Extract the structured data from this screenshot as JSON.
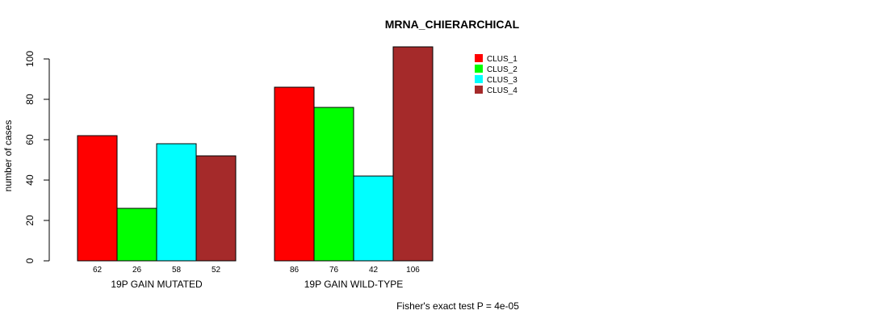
{
  "chart_data": {
    "type": "bar",
    "title": "MRNA_CHIERARCHICAL",
    "xlabel": "",
    "ylabel": "number of cases",
    "ylim": [
      0,
      105
    ],
    "yticks": [
      0,
      20,
      40,
      60,
      80,
      100
    ],
    "groups": [
      "19P GAIN MUTATED",
      "19P GAIN WILD-TYPE"
    ],
    "series": [
      {
        "name": "CLUS_1",
        "color": "#ff0000",
        "values": [
          62,
          86
        ]
      },
      {
        "name": "CLUS_2",
        "color": "#00ff00",
        "values": [
          26,
          76
        ]
      },
      {
        "name": "CLUS_3",
        "color": "#00ffff",
        "values": [
          58,
          42
        ]
      },
      {
        "name": "CLUS_4",
        "color": "#a52a2a",
        "values": [
          52,
          106
        ]
      }
    ],
    "footnote": "Fisher's exact test P = 4e-05",
    "grid": false,
    "legend": "top-right"
  }
}
